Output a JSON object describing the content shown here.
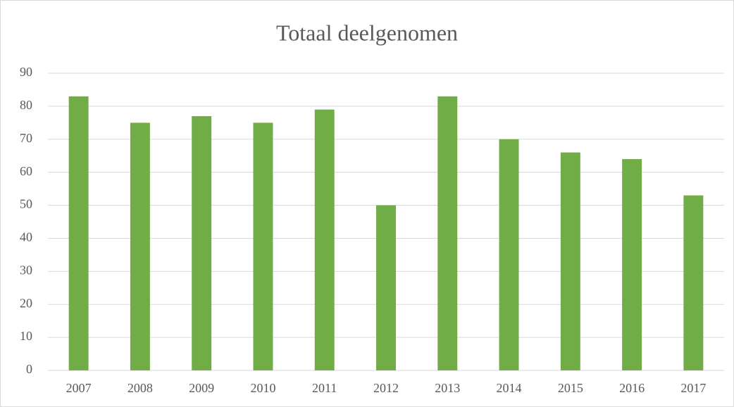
{
  "chart_data": {
    "type": "bar",
    "title": "Totaal deelgenomen",
    "categories": [
      "2007",
      "2008",
      "2009",
      "2010",
      "2011",
      "2012",
      "2013",
      "2014",
      "2015",
      "2016",
      "2017"
    ],
    "values": [
      83,
      75,
      77,
      75,
      79,
      50,
      83,
      70,
      66,
      64,
      53
    ],
    "color": "#70ad47",
    "ylim": [
      0,
      90
    ],
    "yticks": [
      0,
      10,
      20,
      30,
      40,
      50,
      60,
      70,
      80,
      90
    ],
    "grid": true
  }
}
